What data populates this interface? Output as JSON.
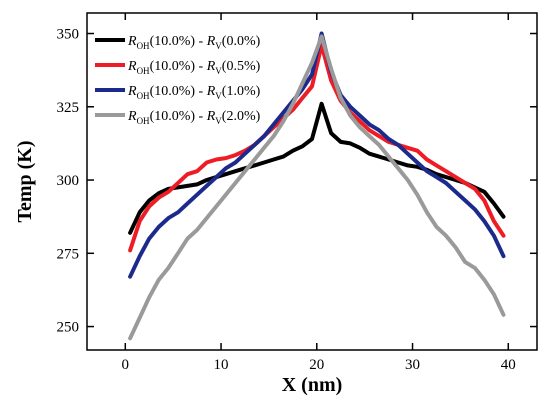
{
  "chart_data": {
    "type": "line",
    "title": "",
    "xlabel": "X (nm)",
    "ylabel": "Temp (K)",
    "xlim": [
      -4,
      43
    ],
    "ylim": [
      242,
      357
    ],
    "x_ticks": [
      0,
      10,
      20,
      30,
      40
    ],
    "y_ticks": [
      250,
      275,
      300,
      325,
      350
    ],
    "grid": false,
    "legend_position": "top-left",
    "series": [
      {
        "name": "R_OH(10.0%) - R_V(0.0%)",
        "legend": {
          "main1": "R",
          "sub1": "OH",
          "mid": "(10.0%) - ",
          "main2": "R",
          "sub2": "V",
          "end": "(0.0%)"
        },
        "color": "#000000",
        "x": [
          0.5,
          1.5,
          2.5,
          3.5,
          4.5,
          5.5,
          6.5,
          7.5,
          8.5,
          9.5,
          10.5,
          11.5,
          12.5,
          13.5,
          14.5,
          15.5,
          16.5,
          17.5,
          18.5,
          19.5,
          20.5,
          21.5,
          22.5,
          23.5,
          24.5,
          25.5,
          26.5,
          27.5,
          28.5,
          29.5,
          30.5,
          31.5,
          32.5,
          33.5,
          34.5,
          35.5,
          36.5,
          37.5,
          38.5,
          39.5
        ],
        "values": [
          282,
          289,
          293,
          295.5,
          297,
          297.5,
          298,
          298.5,
          300,
          301,
          302,
          303,
          304,
          305,
          306,
          307,
          308,
          310,
          311.5,
          314,
          326,
          316,
          313,
          312.5,
          311,
          309,
          308,
          307,
          306,
          305,
          304.5,
          303.5,
          302,
          301,
          300,
          299,
          297.5,
          296,
          292,
          287.5
        ]
      },
      {
        "name": "R_OH(10.0%) - R_V(0.5%)",
        "legend": {
          "main1": "R",
          "sub1": "OH",
          "mid": "(10.0%) - ",
          "main2": "R",
          "sub2": "V",
          "end": "(0.5%)"
        },
        "color": "#ee1c25",
        "x": [
          0.5,
          1.5,
          2.5,
          3.5,
          4.5,
          5.5,
          6.5,
          7.5,
          8.5,
          9.5,
          10.5,
          11.5,
          12.5,
          13.5,
          14.5,
          15.5,
          16.5,
          17.5,
          18.5,
          19.5,
          20.5,
          21.5,
          22.5,
          23.5,
          24.5,
          25.5,
          26.5,
          27.5,
          28.5,
          29.5,
          30.5,
          31.5,
          32.5,
          33.5,
          34.5,
          35.5,
          36.5,
          37.5,
          38.5,
          39.5
        ],
        "values": [
          276,
          286,
          291,
          294,
          296,
          299,
          302,
          303,
          306,
          307,
          307.5,
          308.5,
          310,
          312,
          315,
          318,
          321,
          324,
          328,
          332,
          346,
          334,
          327,
          323,
          320,
          317,
          315,
          313,
          312,
          311,
          310,
          307,
          305,
          303,
          301,
          299,
          297,
          293,
          286,
          281
        ]
      },
      {
        "name": "R_OH(10.0%) - R_V(1.0%)",
        "legend": {
          "main1": "R",
          "sub1": "OH",
          "mid": "(10.0%) - ",
          "main2": "R",
          "sub2": "V",
          "end": "(1.0%)"
        },
        "color": "#1c2a8c",
        "x": [
          0.5,
          1.5,
          2.5,
          3.5,
          4.5,
          5.5,
          6.5,
          7.5,
          8.5,
          9.5,
          10.5,
          11.5,
          12.5,
          13.5,
          14.5,
          15.5,
          16.5,
          17.5,
          18.5,
          19.5,
          20.5,
          21.5,
          22.5,
          23.5,
          24.5,
          25.5,
          26.5,
          27.5,
          28.5,
          29.5,
          30.5,
          31.5,
          32.5,
          33.5,
          34.5,
          35.5,
          36.5,
          37.5,
          38.5,
          39.5
        ],
        "values": [
          267,
          274,
          280,
          284,
          287,
          289,
          292,
          295,
          298,
          301,
          304,
          306,
          309,
          312,
          315,
          319,
          323,
          327,
          331,
          336,
          350,
          337,
          329,
          325,
          322,
          319,
          317,
          314,
          312,
          309,
          306,
          303,
          301,
          299,
          296,
          293,
          290,
          286,
          281,
          274
        ]
      },
      {
        "name": "R_OH(10.0%) - R_V(2.0%)",
        "legend": {
          "main1": "R",
          "sub1": "OH",
          "mid": "(10.0%) - ",
          "main2": "R",
          "sub2": "V",
          "end": "(2.0%)"
        },
        "color": "#9a9a9a",
        "x": [
          0.5,
          1.5,
          2.5,
          3.5,
          4.5,
          5.5,
          6.5,
          7.5,
          8.5,
          9.5,
          10.5,
          11.5,
          12.5,
          13.5,
          14.5,
          15.5,
          16.5,
          17.5,
          18.5,
          19.5,
          20.5,
          21.5,
          22.5,
          23.5,
          24.5,
          25.5,
          26.5,
          27.5,
          28.5,
          29.5,
          30.5,
          31.5,
          32.5,
          33.5,
          34.5,
          35.5,
          36.5,
          37.5,
          38.5,
          39.5
        ],
        "values": [
          246,
          253,
          260,
          266,
          270,
          275,
          280,
          283,
          287,
          291,
          295,
          299,
          303,
          307,
          311,
          315,
          320,
          326,
          333,
          340,
          349,
          338,
          328,
          322,
          318,
          315,
          312,
          308,
          304,
          300,
          295,
          289,
          284,
          281,
          277,
          272,
          270,
          266,
          261,
          254
        ]
      }
    ]
  }
}
